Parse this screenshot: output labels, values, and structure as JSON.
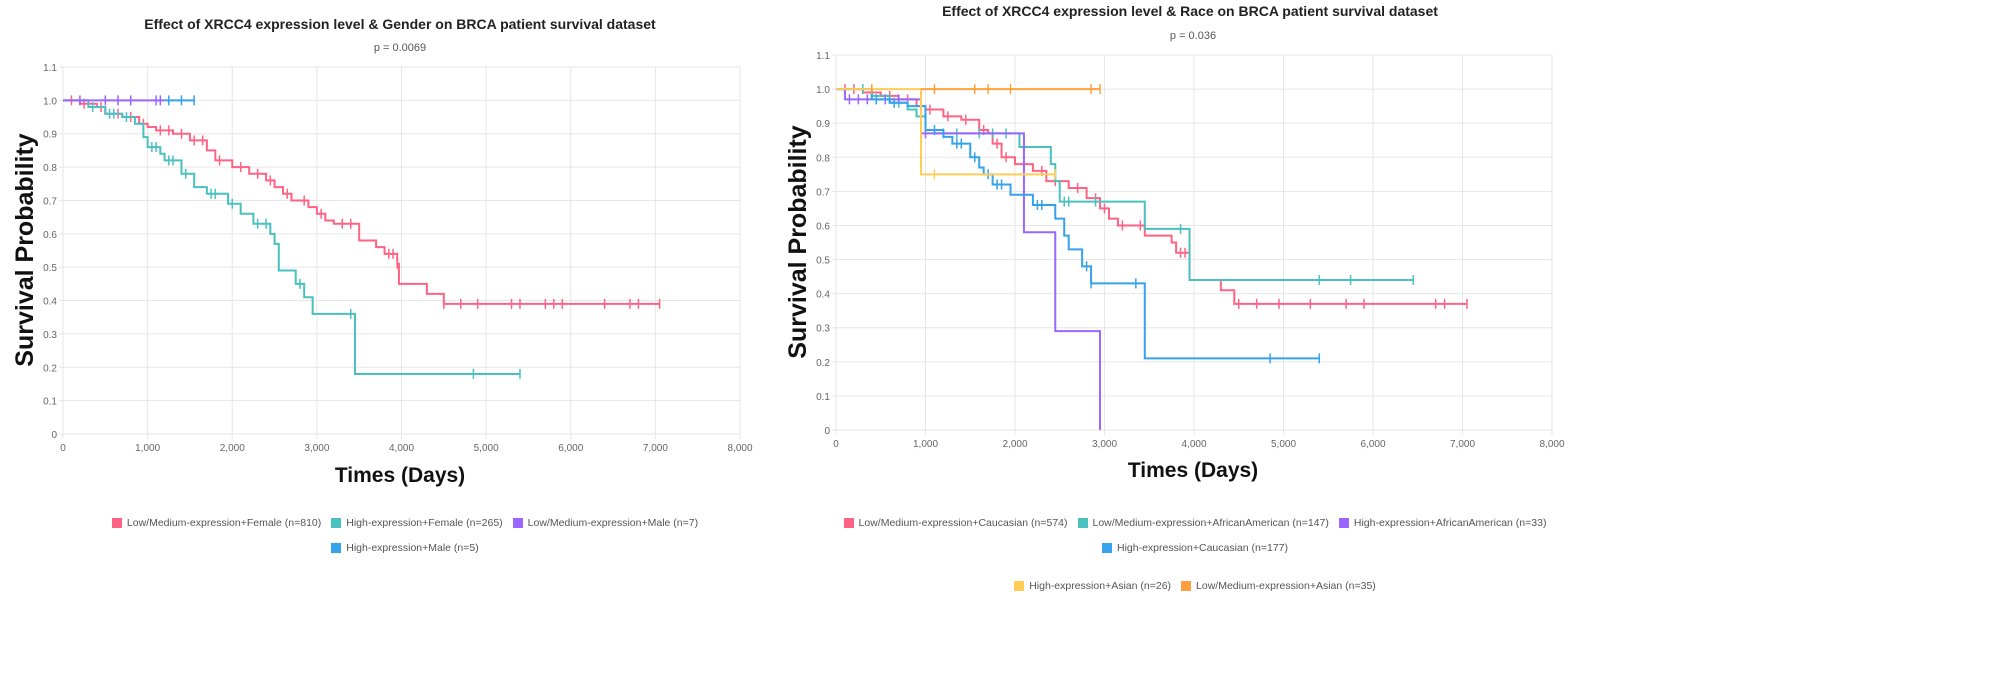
{
  "chart_data": [
    {
      "type": "line",
      "title": "Effect of XRCC4 expression level & Gender on BRCA patient survival dataset",
      "subtitle": "p = 0.0069",
      "xlabel": "Times (Days)",
      "ylabel": "Survival Probability",
      "xlim": [
        0,
        8000
      ],
      "ylim": [
        0,
        1.1
      ],
      "xticks": [
        "0",
        "1,000",
        "2,000",
        "3,000",
        "4,000",
        "5,000",
        "6,000",
        "7,000",
        "8,000"
      ],
      "yticks": [
        "0",
        "0.1",
        "0.2",
        "0.3",
        "0.4",
        "0.5",
        "0.6",
        "0.7",
        "0.8",
        "0.9",
        "1.0",
        "1.1"
      ],
      "grid": true,
      "legend_position": "bottom",
      "series": [
        {
          "name": "Low/Medium-expression+Female (n=810)",
          "color": "#ff6384",
          "steps": [
            [
              0,
              1
            ],
            [
              200,
              0.99
            ],
            [
              400,
              0.98
            ],
            [
              500,
              0.96
            ],
            [
              700,
              0.95
            ],
            [
              900,
              0.93
            ],
            [
              1000,
              0.92
            ],
            [
              1100,
              0.91
            ],
            [
              1300,
              0.9
            ],
            [
              1500,
              0.88
            ],
            [
              1700,
              0.85
            ],
            [
              1800,
              0.82
            ],
            [
              2000,
              0.8
            ],
            [
              2200,
              0.78
            ],
            [
              2400,
              0.76
            ],
            [
              2500,
              0.74
            ],
            [
              2600,
              0.72
            ],
            [
              2700,
              0.7
            ],
            [
              2900,
              0.68
            ],
            [
              3000,
              0.66
            ],
            [
              3100,
              0.64
            ],
            [
              3200,
              0.63
            ],
            [
              3500,
              0.58
            ],
            [
              3700,
              0.56
            ],
            [
              3800,
              0.54
            ],
            [
              3950,
              0.51
            ],
            [
              3970,
              0.45
            ],
            [
              4300,
              0.42
            ],
            [
              4500,
              0.39
            ],
            [
              7050,
              0.39
            ]
          ],
          "censors": [
            100,
            250,
            450,
            650,
            800,
            950,
            1150,
            1250,
            1400,
            1550,
            1650,
            1850,
            2100,
            2300,
            2450,
            2650,
            2850,
            3050,
            3300,
            3400,
            3850,
            3900,
            3950,
            4500,
            4700,
            4900,
            5300,
            5400,
            5700,
            5800,
            5900,
            6400,
            6700,
            6800,
            7050
          ]
        },
        {
          "name": "High-expression+Female (n=265)",
          "color": "#4bc0c0",
          "steps": [
            [
              0,
              1
            ],
            [
              300,
              0.98
            ],
            [
              500,
              0.96
            ],
            [
              700,
              0.95
            ],
            [
              850,
              0.93
            ],
            [
              950,
              0.89
            ],
            [
              1000,
              0.86
            ],
            [
              1150,
              0.84
            ],
            [
              1200,
              0.82
            ],
            [
              1400,
              0.78
            ],
            [
              1550,
              0.74
            ],
            [
              1700,
              0.72
            ],
            [
              1950,
              0.69
            ],
            [
              2100,
              0.66
            ],
            [
              2250,
              0.63
            ],
            [
              2450,
              0.6
            ],
            [
              2500,
              0.57
            ],
            [
              2550,
              0.49
            ],
            [
              2750,
              0.45
            ],
            [
              2850,
              0.41
            ],
            [
              2950,
              0.36
            ],
            [
              3450,
              0.18
            ],
            [
              5400,
              0.18
            ]
          ],
          "censors": [
            350,
            550,
            600,
            750,
            1050,
            1100,
            1250,
            1300,
            1450,
            1750,
            1800,
            2000,
            2300,
            2400,
            2800,
            3400,
            4850,
            5400
          ]
        },
        {
          "name": "Low/Medium-expression+Male (n=7)",
          "color": "#9966ff",
          "steps": [
            [
              0,
              1
            ],
            [
              1200,
              1
            ]
          ],
          "censors": [
            200,
            500,
            650,
            800,
            1100,
            1150
          ]
        },
        {
          "name": "High-expression+Male (n=5)",
          "color": "#36a2eb",
          "steps": [
            [
              1200,
              1
            ],
            [
              1550,
              1
            ]
          ],
          "censors": [
            1250,
            1400,
            1550
          ]
        }
      ]
    },
    {
      "type": "line",
      "title": "Effect of XRCC4 expression level & Race on BRCA patient survival dataset",
      "subtitle": "p = 0.036",
      "xlabel": "Times (Days)",
      "ylabel": "Survival Probability",
      "xlim": [
        0,
        8000
      ],
      "ylim": [
        0,
        1.1
      ],
      "xticks": [
        "0",
        "1,000",
        "2,000",
        "3,000",
        "4,000",
        "5,000",
        "6,000",
        "7,000",
        "8,000"
      ],
      "yticks": [
        "0",
        "0.1",
        "0.2",
        "0.3",
        "0.4",
        "0.5",
        "0.6",
        "0.7",
        "0.8",
        "0.9",
        "1.0",
        "1.1"
      ],
      "grid": true,
      "legend_position": "bottom",
      "series": [
        {
          "name": "Low/Medium-expression+Caucasian (n=574)",
          "color": "#ff6384",
          "steps": [
            [
              0,
              1
            ],
            [
              300,
              0.99
            ],
            [
              500,
              0.98
            ],
            [
              700,
              0.97
            ],
            [
              900,
              0.95
            ],
            [
              1000,
              0.94
            ],
            [
              1200,
              0.92
            ],
            [
              1400,
              0.91
            ],
            [
              1600,
              0.88
            ],
            [
              1700,
              0.87
            ],
            [
              1750,
              0.84
            ],
            [
              1850,
              0.8
            ],
            [
              2000,
              0.78
            ],
            [
              2200,
              0.76
            ],
            [
              2350,
              0.73
            ],
            [
              2600,
              0.71
            ],
            [
              2800,
              0.68
            ],
            [
              2950,
              0.65
            ],
            [
              3050,
              0.62
            ],
            [
              3150,
              0.6
            ],
            [
              3450,
              0.57
            ],
            [
              3750,
              0.55
            ],
            [
              3800,
              0.52
            ],
            [
              3950,
              0.44
            ],
            [
              4300,
              0.41
            ],
            [
              4450,
              0.37
            ],
            [
              7050,
              0.37
            ]
          ],
          "censors": [
            100,
            200,
            400,
            600,
            800,
            1050,
            1250,
            1450,
            1650,
            1800,
            1900,
            2100,
            2300,
            2450,
            2700,
            2900,
            3000,
            3200,
            3400,
            3850,
            3900,
            4500,
            4700,
            4950,
            5300,
            5700,
            5900,
            6700,
            6800,
            7050
          ]
        },
        {
          "name": "Low/Medium-expression+AfricanAmerican (n=147)",
          "color": "#4bc0c0",
          "steps": [
            [
              0,
              1
            ],
            [
              400,
              0.98
            ],
            [
              600,
              0.96
            ],
            [
              800,
              0.94
            ],
            [
              900,
              0.92
            ],
            [
              1000,
              0.88
            ],
            [
              1100,
              0.87
            ],
            [
              2000,
              0.87
            ],
            [
              2050,
              0.83
            ],
            [
              2400,
              0.78
            ],
            [
              2450,
              0.73
            ],
            [
              2500,
              0.67
            ],
            [
              3450,
              0.67
            ],
            [
              3450,
              0.59
            ],
            [
              3950,
              0.59
            ],
            [
              3950,
              0.44
            ],
            [
              6450,
              0.44
            ]
          ],
          "censors": [
            300,
            700,
            950,
            1200,
            1350,
            1600,
            1750,
            1900,
            2100,
            2550,
            2600,
            2900,
            3850,
            5400,
            5750,
            6450
          ]
        },
        {
          "name": "High-expression+AfricanAmerican (n=33)",
          "color": "#9966ff",
          "steps": [
            [
              0,
              1
            ],
            [
              100,
              0.97
            ],
            [
              900,
              0.97
            ],
            [
              950,
              0.87
            ],
            [
              2100,
              0.87
            ],
            [
              2100,
              0.58
            ],
            [
              2450,
              0.58
            ],
            [
              2450,
              0.29
            ],
            [
              2950,
              0.29
            ],
            [
              2950,
              0
            ]
          ],
          "censors": [
            150,
            250,
            350,
            450,
            550,
            700,
            950,
            1000
          ]
        },
        {
          "name": "High-expression+Caucasian (n=177)",
          "color": "#36a2eb",
          "steps": [
            [
              0,
              1
            ],
            [
              400,
              0.97
            ],
            [
              600,
              0.96
            ],
            [
              800,
              0.95
            ],
            [
              1000,
              0.88
            ],
            [
              1200,
              0.86
            ],
            [
              1300,
              0.84
            ],
            [
              1500,
              0.8
            ],
            [
              1600,
              0.77
            ],
            [
              1650,
              0.75
            ],
            [
              1750,
              0.72
            ],
            [
              1950,
              0.69
            ],
            [
              2200,
              0.66
            ],
            [
              2450,
              0.62
            ],
            [
              2550,
              0.57
            ],
            [
              2600,
              0.53
            ],
            [
              2750,
              0.48
            ],
            [
              2850,
              0.43
            ],
            [
              3450,
              0.43
            ],
            [
              3450,
              0.21
            ],
            [
              5400,
              0.21
            ]
          ],
          "censors": [
            450,
            650,
            1100,
            1350,
            1400,
            1550,
            1700,
            1800,
            1850,
            2250,
            2300,
            2800,
            2850,
            3350,
            4850,
            5400
          ]
        },
        {
          "name": "High-expression+Asian (n=26)",
          "color": "#ffcd56",
          "steps": [
            [
              0,
              1
            ],
            [
              950,
              1
            ],
            [
              950,
              0.75
            ],
            [
              2450,
              0.75
            ]
          ],
          "censors": [
            1100,
            2450
          ]
        },
        {
          "name": "Low/Medium-expression+Asian (n=35)",
          "color": "#ff9f40",
          "steps": [
            [
              950,
              1
            ],
            [
              2950,
              1
            ]
          ],
          "censors": [
            400,
            1100,
            1550,
            1700,
            1950,
            2850,
            2950
          ]
        }
      ]
    }
  ]
}
